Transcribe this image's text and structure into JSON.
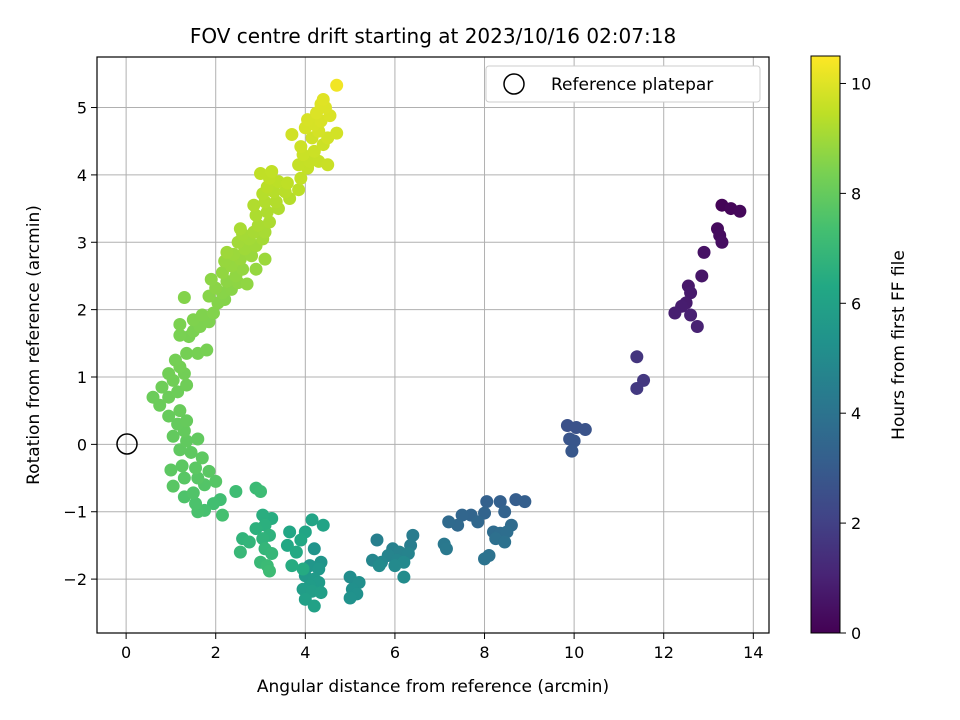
{
  "chart_data": {
    "type": "scatter",
    "title": "FOV centre drift starting at 2023/10/16 02:07:18",
    "xlabel": "Angular distance from reference (arcmin)",
    "ylabel": "Rotation from reference (arcmin)",
    "xlim": [
      -0.65,
      14.35
    ],
    "ylim": [
      -2.8,
      5.75
    ],
    "x_ticks": [
      0,
      2,
      4,
      6,
      8,
      10,
      12,
      14
    ],
    "y_ticks": [
      -2,
      -1,
      0,
      1,
      2,
      3,
      4,
      5
    ],
    "grid": true,
    "legend": {
      "placement": "upper-right",
      "entries": [
        "Reference platepar"
      ]
    },
    "reference_point": {
      "x": 0,
      "y": 0,
      "label": "Reference platepar"
    },
    "colorbar": {
      "label": "Hours from first FF file",
      "range": [
        0,
        10.5
      ],
      "ticks": [
        0,
        2,
        4,
        6,
        8,
        10
      ],
      "colormap": "viridis"
    },
    "points": [
      {
        "x": 13.3,
        "y": 3.55,
        "t": 0.1
      },
      {
        "x": 13.5,
        "y": 3.5,
        "t": 0.15
      },
      {
        "x": 13.7,
        "y": 3.46,
        "t": 0.2
      },
      {
        "x": 13.2,
        "y": 3.2,
        "t": 0.3
      },
      {
        "x": 13.25,
        "y": 3.1,
        "t": 0.35
      },
      {
        "x": 13.3,
        "y": 3.0,
        "t": 0.4
      },
      {
        "x": 12.9,
        "y": 2.85,
        "t": 0.5
      },
      {
        "x": 12.85,
        "y": 2.5,
        "t": 0.6
      },
      {
        "x": 12.55,
        "y": 2.35,
        "t": 0.7
      },
      {
        "x": 12.6,
        "y": 2.25,
        "t": 0.75
      },
      {
        "x": 12.5,
        "y": 2.1,
        "t": 0.8
      },
      {
        "x": 12.4,
        "y": 2.05,
        "t": 0.85
      },
      {
        "x": 12.25,
        "y": 1.95,
        "t": 0.9
      },
      {
        "x": 12.6,
        "y": 1.92,
        "t": 0.95
      },
      {
        "x": 12.75,
        "y": 1.75,
        "t": 1.0
      },
      {
        "x": 11.4,
        "y": 1.3,
        "t": 1.6
      },
      {
        "x": 11.55,
        "y": 0.95,
        "t": 1.7
      },
      {
        "x": 11.4,
        "y": 0.83,
        "t": 1.75
      },
      {
        "x": 9.85,
        "y": 0.28,
        "t": 2.6
      },
      {
        "x": 10.05,
        "y": 0.25,
        "t": 2.65
      },
      {
        "x": 10.25,
        "y": 0.22,
        "t": 2.7
      },
      {
        "x": 9.9,
        "y": 0.08,
        "t": 2.75
      },
      {
        "x": 10.0,
        "y": 0.05,
        "t": 2.8
      },
      {
        "x": 9.95,
        "y": -0.1,
        "t": 2.85
      },
      {
        "x": 8.7,
        "y": -0.82,
        "t": 3.1
      },
      {
        "x": 8.9,
        "y": -0.85,
        "t": 3.15
      },
      {
        "x": 8.35,
        "y": -0.85,
        "t": 3.2
      },
      {
        "x": 8.05,
        "y": -0.85,
        "t": 3.25
      },
      {
        "x": 8.45,
        "y": -1.0,
        "t": 3.3
      },
      {
        "x": 8.0,
        "y": -1.02,
        "t": 3.35
      },
      {
        "x": 7.7,
        "y": -1.05,
        "t": 3.4
      },
      {
        "x": 7.5,
        "y": -1.05,
        "t": 3.45
      },
      {
        "x": 7.85,
        "y": -1.15,
        "t": 3.5
      },
      {
        "x": 7.4,
        "y": -1.2,
        "t": 3.55
      },
      {
        "x": 7.2,
        "y": -1.15,
        "t": 3.6
      },
      {
        "x": 8.6,
        "y": -1.2,
        "t": 3.65
      },
      {
        "x": 8.2,
        "y": -1.3,
        "t": 3.7
      },
      {
        "x": 8.35,
        "y": -1.32,
        "t": 3.75
      },
      {
        "x": 8.5,
        "y": -1.3,
        "t": 3.8
      },
      {
        "x": 8.25,
        "y": -1.4,
        "t": 3.85
      },
      {
        "x": 8.45,
        "y": -1.45,
        "t": 3.9
      },
      {
        "x": 8.1,
        "y": -1.65,
        "t": 3.95
      },
      {
        "x": 8.0,
        "y": -1.7,
        "t": 4.0
      },
      {
        "x": 7.1,
        "y": -1.48,
        "t": 4.2
      },
      {
        "x": 7.15,
        "y": -1.55,
        "t": 4.25
      },
      {
        "x": 6.4,
        "y": -1.35,
        "t": 4.35
      },
      {
        "x": 6.35,
        "y": -1.5,
        "t": 4.4
      },
      {
        "x": 5.6,
        "y": -1.42,
        "t": 4.5
      },
      {
        "x": 5.95,
        "y": -1.55,
        "t": 4.55
      },
      {
        "x": 6.1,
        "y": -1.6,
        "t": 4.6
      },
      {
        "x": 6.3,
        "y": -1.62,
        "t": 4.65
      },
      {
        "x": 5.85,
        "y": -1.65,
        "t": 4.7
      },
      {
        "x": 6.05,
        "y": -1.72,
        "t": 4.75
      },
      {
        "x": 5.5,
        "y": -1.72,
        "t": 4.8
      },
      {
        "x": 5.7,
        "y": -1.75,
        "t": 4.85
      },
      {
        "x": 6.2,
        "y": -1.75,
        "t": 4.9
      },
      {
        "x": 6.0,
        "y": -1.8,
        "t": 4.95
      },
      {
        "x": 5.65,
        "y": -1.8,
        "t": 5.0
      },
      {
        "x": 6.2,
        "y": -1.97,
        "t": 5.05
      },
      {
        "x": 5.0,
        "y": -1.97,
        "t": 5.1
      },
      {
        "x": 5.2,
        "y": -2.05,
        "t": 5.15
      },
      {
        "x": 5.05,
        "y": -2.15,
        "t": 5.2
      },
      {
        "x": 5.15,
        "y": -2.22,
        "t": 5.25
      },
      {
        "x": 5.0,
        "y": -2.28,
        "t": 5.3
      },
      {
        "x": 4.2,
        "y": -1.55,
        "t": 5.4
      },
      {
        "x": 4.35,
        "y": -1.75,
        "t": 5.45
      },
      {
        "x": 4.1,
        "y": -1.8,
        "t": 5.5
      },
      {
        "x": 4.3,
        "y": -1.85,
        "t": 5.55
      },
      {
        "x": 4.0,
        "y": -1.95,
        "t": 5.6
      },
      {
        "x": 4.2,
        "y": -2.0,
        "t": 5.65
      },
      {
        "x": 4.3,
        "y": -2.05,
        "t": 5.7
      },
      {
        "x": 4.1,
        "y": -2.1,
        "t": 5.75
      },
      {
        "x": 3.95,
        "y": -2.15,
        "t": 5.8
      },
      {
        "x": 4.15,
        "y": -2.18,
        "t": 5.85
      },
      {
        "x": 4.35,
        "y": -2.2,
        "t": 5.9
      },
      {
        "x": 4.0,
        "y": -2.3,
        "t": 5.95
      },
      {
        "x": 4.2,
        "y": -2.4,
        "t": 6.0
      },
      {
        "x": 4.4,
        "y": -1.2,
        "t": 6.05
      },
      {
        "x": 4.15,
        "y": -1.12,
        "t": 6.1
      },
      {
        "x": 4.0,
        "y": -1.3,
        "t": 6.15
      },
      {
        "x": 3.65,
        "y": -1.3,
        "t": 6.2
      },
      {
        "x": 3.9,
        "y": -1.42,
        "t": 6.25
      },
      {
        "x": 3.6,
        "y": -1.5,
        "t": 6.3
      },
      {
        "x": 3.8,
        "y": -1.6,
        "t": 6.35
      },
      {
        "x": 3.95,
        "y": -1.85,
        "t": 6.4
      },
      {
        "x": 3.7,
        "y": -1.8,
        "t": 6.45
      },
      {
        "x": 3.25,
        "y": -1.1,
        "t": 6.5
      },
      {
        "x": 3.05,
        "y": -1.05,
        "t": 6.55
      },
      {
        "x": 3.1,
        "y": -1.2,
        "t": 6.6
      },
      {
        "x": 2.9,
        "y": -1.25,
        "t": 6.65
      },
      {
        "x": 3.2,
        "y": -1.35,
        "t": 6.7
      },
      {
        "x": 3.05,
        "y": -1.4,
        "t": 6.75
      },
      {
        "x": 2.6,
        "y": -1.4,
        "t": 6.8
      },
      {
        "x": 2.75,
        "y": -1.45,
        "t": 6.85
      },
      {
        "x": 3.1,
        "y": -1.55,
        "t": 6.9
      },
      {
        "x": 3.25,
        "y": -1.62,
        "t": 6.95
      },
      {
        "x": 2.55,
        "y": -1.6,
        "t": 7.0
      },
      {
        "x": 3.0,
        "y": -1.75,
        "t": 7.05
      },
      {
        "x": 3.15,
        "y": -1.8,
        "t": 7.1
      },
      {
        "x": 3.2,
        "y": -1.88,
        "t": 7.15
      },
      {
        "x": 2.9,
        "y": -0.65,
        "t": 7.1
      },
      {
        "x": 3.0,
        "y": -0.7,
        "t": 7.15
      },
      {
        "x": 2.45,
        "y": -0.7,
        "t": 7.2
      },
      {
        "x": 2.1,
        "y": -0.82,
        "t": 7.25
      },
      {
        "x": 1.95,
        "y": -0.88,
        "t": 7.3
      },
      {
        "x": 2.15,
        "y": -1.05,
        "t": 7.35
      },
      {
        "x": 1.75,
        "y": -0.98,
        "t": 7.4
      },
      {
        "x": 1.6,
        "y": -1.0,
        "t": 7.45
      },
      {
        "x": 1.55,
        "y": -0.88,
        "t": 7.5
      },
      {
        "x": 1.3,
        "y": -0.78,
        "t": 7.55
      },
      {
        "x": 1.5,
        "y": -0.72,
        "t": 7.6
      },
      {
        "x": 1.75,
        "y": -0.6,
        "t": 7.65
      },
      {
        "x": 2.0,
        "y": -0.55,
        "t": 7.7
      },
      {
        "x": 1.6,
        "y": -0.5,
        "t": 7.72
      },
      {
        "x": 1.3,
        "y": -0.5,
        "t": 7.74
      },
      {
        "x": 1.05,
        "y": -0.62,
        "t": 7.76
      },
      {
        "x": 1.85,
        "y": -0.4,
        "t": 7.78
      },
      {
        "x": 1.55,
        "y": -0.35,
        "t": 7.8
      },
      {
        "x": 1.25,
        "y": -0.32,
        "t": 7.82
      },
      {
        "x": 1.0,
        "y": -0.38,
        "t": 7.84
      },
      {
        "x": 1.7,
        "y": -0.2,
        "t": 7.86
      },
      {
        "x": 1.45,
        "y": -0.12,
        "t": 7.88
      },
      {
        "x": 1.2,
        "y": -0.08,
        "t": 7.9
      },
      {
        "x": 1.35,
        "y": 0.05,
        "t": 7.92
      },
      {
        "x": 1.6,
        "y": 0.08,
        "t": 7.94
      },
      {
        "x": 1.05,
        "y": 0.12,
        "t": 7.96
      },
      {
        "x": 1.3,
        "y": 0.2,
        "t": 7.98
      },
      {
        "x": 1.15,
        "y": 0.3,
        "t": 8.0
      },
      {
        "x": 1.35,
        "y": 0.35,
        "t": 8.02
      },
      {
        "x": 0.95,
        "y": 0.42,
        "t": 8.04
      },
      {
        "x": 1.2,
        "y": 0.5,
        "t": 8.06
      },
      {
        "x": 0.75,
        "y": 0.58,
        "t": 8.08
      },
      {
        "x": 0.6,
        "y": 0.7,
        "t": 8.1
      },
      {
        "x": 0.95,
        "y": 0.7,
        "t": 8.12
      },
      {
        "x": 1.15,
        "y": 0.78,
        "t": 8.14
      },
      {
        "x": 0.8,
        "y": 0.85,
        "t": 8.16
      },
      {
        "x": 1.35,
        "y": 0.88,
        "t": 8.18
      },
      {
        "x": 1.05,
        "y": 0.95,
        "t": 8.2
      },
      {
        "x": 0.95,
        "y": 1.05,
        "t": 8.22
      },
      {
        "x": 1.3,
        "y": 1.05,
        "t": 8.24
      },
      {
        "x": 1.2,
        "y": 1.15,
        "t": 8.26
      },
      {
        "x": 1.1,
        "y": 1.25,
        "t": 8.28
      },
      {
        "x": 1.35,
        "y": 1.35,
        "t": 8.3
      },
      {
        "x": 1.6,
        "y": 1.35,
        "t": 8.32
      },
      {
        "x": 1.8,
        "y": 1.4,
        "t": 8.34
      },
      {
        "x": 1.4,
        "y": 1.6,
        "t": 8.36
      },
      {
        "x": 1.2,
        "y": 1.62,
        "t": 8.38
      },
      {
        "x": 1.5,
        "y": 1.68,
        "t": 8.4
      },
      {
        "x": 1.2,
        "y": 1.78,
        "t": 8.42
      },
      {
        "x": 1.65,
        "y": 1.75,
        "t": 8.44
      },
      {
        "x": 1.85,
        "y": 1.82,
        "t": 8.46
      },
      {
        "x": 1.5,
        "y": 1.85,
        "t": 8.48
      },
      {
        "x": 1.7,
        "y": 1.92,
        "t": 8.5
      },
      {
        "x": 1.95,
        "y": 1.95,
        "t": 8.52
      },
      {
        "x": 1.3,
        "y": 2.18,
        "t": 8.54
      },
      {
        "x": 2.05,
        "y": 2.1,
        "t": 8.56
      },
      {
        "x": 2.2,
        "y": 2.15,
        "t": 8.58
      },
      {
        "x": 1.85,
        "y": 2.2,
        "t": 8.6
      },
      {
        "x": 2.15,
        "y": 2.25,
        "t": 8.62
      },
      {
        "x": 2.35,
        "y": 2.3,
        "t": 8.64
      },
      {
        "x": 2.0,
        "y": 2.32,
        "t": 8.66
      },
      {
        "x": 1.9,
        "y": 2.45,
        "t": 8.68
      },
      {
        "x": 2.25,
        "y": 2.42,
        "t": 8.7
      },
      {
        "x": 2.5,
        "y": 2.4,
        "t": 8.72
      },
      {
        "x": 2.7,
        "y": 2.38,
        "t": 8.74
      },
      {
        "x": 2.45,
        "y": 2.5,
        "t": 8.76
      },
      {
        "x": 2.15,
        "y": 2.55,
        "t": 8.78
      },
      {
        "x": 2.6,
        "y": 2.6,
        "t": 8.8
      },
      {
        "x": 2.9,
        "y": 2.6,
        "t": 8.82
      },
      {
        "x": 2.35,
        "y": 2.65,
        "t": 8.84
      },
      {
        "x": 2.2,
        "y": 2.72,
        "t": 8.86
      },
      {
        "x": 2.55,
        "y": 2.75,
        "t": 8.88
      },
      {
        "x": 2.8,
        "y": 2.8,
        "t": 8.9
      },
      {
        "x": 3.1,
        "y": 2.75,
        "t": 8.92
      },
      {
        "x": 2.4,
        "y": 2.82,
        "t": 8.94
      },
      {
        "x": 2.25,
        "y": 2.85,
        "t": 8.96
      },
      {
        "x": 2.65,
        "y": 2.9,
        "t": 8.98
      },
      {
        "x": 2.9,
        "y": 2.95,
        "t": 9.0
      },
      {
        "x": 2.5,
        "y": 3.0,
        "t": 9.02
      },
      {
        "x": 2.75,
        "y": 3.05,
        "t": 9.04
      },
      {
        "x": 3.05,
        "y": 3.05,
        "t": 9.06
      },
      {
        "x": 2.6,
        "y": 3.12,
        "t": 9.08
      },
      {
        "x": 2.85,
        "y": 3.15,
        "t": 9.1
      },
      {
        "x": 3.1,
        "y": 3.15,
        "t": 9.12
      },
      {
        "x": 2.55,
        "y": 3.2,
        "t": 9.14
      },
      {
        "x": 2.95,
        "y": 3.25,
        "t": 9.16
      },
      {
        "x": 3.2,
        "y": 3.3,
        "t": 9.18
      },
      {
        "x": 2.9,
        "y": 3.4,
        "t": 9.2
      },
      {
        "x": 3.15,
        "y": 3.45,
        "t": 9.22
      },
      {
        "x": 3.4,
        "y": 3.5,
        "t": 9.24
      },
      {
        "x": 2.85,
        "y": 3.55,
        "t": 9.26
      },
      {
        "x": 3.1,
        "y": 3.6,
        "t": 9.28
      },
      {
        "x": 3.35,
        "y": 3.6,
        "t": 9.3
      },
      {
        "x": 3.65,
        "y": 3.65,
        "t": 9.32
      },
      {
        "x": 3.05,
        "y": 3.72,
        "t": 9.34
      },
      {
        "x": 3.3,
        "y": 3.75,
        "t": 9.36
      },
      {
        "x": 3.55,
        "y": 3.75,
        "t": 9.38
      },
      {
        "x": 3.15,
        "y": 3.82,
        "t": 9.4
      },
      {
        "x": 3.85,
        "y": 3.78,
        "t": 9.42
      },
      {
        "x": 3.4,
        "y": 3.9,
        "t": 9.44
      },
      {
        "x": 3.6,
        "y": 3.88,
        "t": 9.46
      },
      {
        "x": 3.2,
        "y": 3.95,
        "t": 9.48
      },
      {
        "x": 3.0,
        "y": 4.02,
        "t": 9.5
      },
      {
        "x": 3.25,
        "y": 4.05,
        "t": 9.52
      },
      {
        "x": 3.9,
        "y": 3.95,
        "t": 9.54
      },
      {
        "x": 4.05,
        "y": 4.1,
        "t": 9.56
      },
      {
        "x": 3.85,
        "y": 4.15,
        "t": 9.58
      },
      {
        "x": 4.1,
        "y": 4.2,
        "t": 9.6
      },
      {
        "x": 4.3,
        "y": 4.2,
        "t": 9.62
      },
      {
        "x": 4.5,
        "y": 4.15,
        "t": 9.64
      },
      {
        "x": 3.95,
        "y": 4.3,
        "t": 9.66
      },
      {
        "x": 4.2,
        "y": 4.35,
        "t": 9.68
      },
      {
        "x": 4.4,
        "y": 4.45,
        "t": 9.7
      },
      {
        "x": 3.9,
        "y": 4.42,
        "t": 9.72
      },
      {
        "x": 4.15,
        "y": 4.55,
        "t": 9.74
      },
      {
        "x": 3.7,
        "y": 4.6,
        "t": 9.76
      },
      {
        "x": 4.5,
        "y": 4.55,
        "t": 9.78
      },
      {
        "x": 4.7,
        "y": 4.62,
        "t": 9.8
      },
      {
        "x": 4.3,
        "y": 4.65,
        "t": 9.82
      },
      {
        "x": 4.0,
        "y": 4.7,
        "t": 9.84
      },
      {
        "x": 4.2,
        "y": 4.75,
        "t": 9.86
      },
      {
        "x": 4.05,
        "y": 4.82,
        "t": 9.88
      },
      {
        "x": 4.35,
        "y": 4.8,
        "t": 9.9
      },
      {
        "x": 4.55,
        "y": 4.88,
        "t": 9.92
      },
      {
        "x": 4.25,
        "y": 4.92,
        "t": 9.94
      },
      {
        "x": 4.45,
        "y": 5.0,
        "t": 9.96
      },
      {
        "x": 4.35,
        "y": 5.05,
        "t": 9.98
      },
      {
        "x": 4.4,
        "y": 5.12,
        "t": 10.0
      },
      {
        "x": 4.7,
        "y": 5.33,
        "t": 10.3
      }
    ]
  }
}
